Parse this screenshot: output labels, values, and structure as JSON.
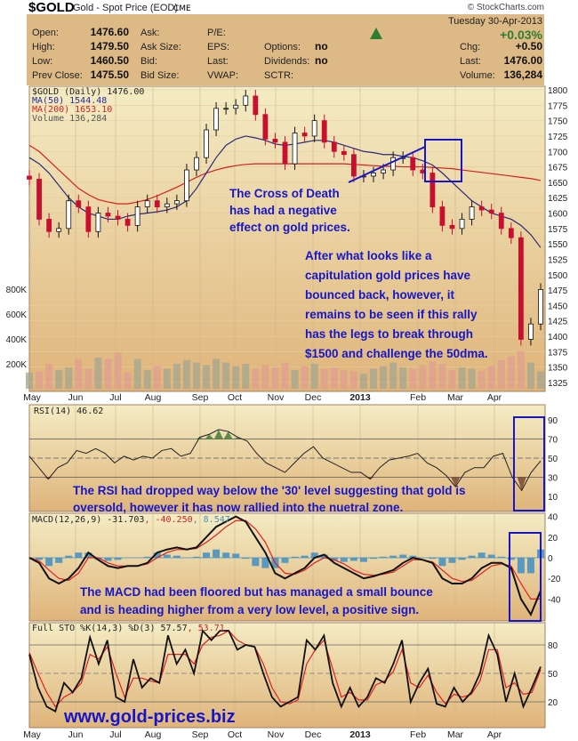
{
  "header": {
    "symbol": "$GOLD",
    "name": "Gold - Spot Price (EOD)",
    "exchange": "CME",
    "copyright": "© StockCharts.com",
    "date": "Tuesday  30-Apr-2013",
    "pct_change": "+0.03%",
    "fields": [
      {
        "label": "Open:",
        "value": "1476.60"
      },
      {
        "label": "High:",
        "value": "1479.50"
      },
      {
        "label": "Low:",
        "value": "1460.50"
      },
      {
        "label": "Prev Close:",
        "value": "1475.50"
      }
    ],
    "col2": [
      "Ask:",
      "Ask Size:",
      "Bid:",
      "Bid Size:"
    ],
    "col3": [
      "P/E:",
      "EPS:",
      "Last:",
      "VWAP:"
    ],
    "col4": [
      {
        "label": "Options:",
        "value": "no"
      },
      {
        "label": "Dividends:",
        "value": "no"
      },
      {
        "label": "SCTR:",
        "value": ""
      }
    ],
    "right": [
      {
        "label": "Chg:",
        "value": "+0.50"
      },
      {
        "label": "Last:",
        "value": "1476.00"
      },
      {
        "label": "Volume:",
        "value": "136,284"
      }
    ],
    "up_color": "#2e7d32"
  },
  "legends": {
    "price": "$GOLD (Daily) 1476.00",
    "ma50": "MA(50) 1544.48",
    "ma200": "MA(200) 1653.10",
    "volume": "Volume 136,284",
    "rsi": "RSI(14) 46.62",
    "macd_main": "MACD(12,26,9) -31.703",
    "macd_signal": ", -40.250",
    "macd_hist": ", 8.547",
    "sto_main": "Full STO %K(14,3) %D(3) 57.57",
    "sto_d": ", 53.71"
  },
  "months": [
    "May",
    "Jun",
    "Jul",
    "Aug",
    "Sep",
    "Oct",
    "Nov",
    "Dec",
    "2013",
    "Feb",
    "Mar",
    "Apr"
  ],
  "annotations": {
    "cross": [
      "The Cross of Death",
      "has had a negative",
      "effect on gold prices."
    ],
    "capitulation": [
      "After what looks like a",
      "capitulation gold prices have",
      "bounced back, however, it",
      "remains to be seen if this rally",
      "has the legs to break through",
      "$1500 and challenge the 50dma."
    ],
    "rsi": [
      "The RSI had dropped way below the '30' level suggesting that gold is",
      "oversold, however it has now rallied into the nuetral zone."
    ],
    "macd": [
      "The MACD had been floored but has managed a small bounce",
      "and is heading higher from a very low level, a positive sign."
    ],
    "website": "www.gold-prices.biz",
    "color": "#1616c8"
  },
  "chart_data": [
    {
      "type": "candlestick",
      "interval": "weekly (approx.)",
      "period": [
        "May 2012",
        "Apr 2013"
      ],
      "yticks": [
        1800,
        1775,
        1750,
        1725,
        1700,
        1675,
        1650,
        1625,
        1600,
        1575,
        1550,
        1525,
        1500,
        1475,
        1450,
        1425,
        1400,
        1375,
        1350,
        1325
      ],
      "ylim": [
        1320,
        1805
      ],
      "close": [
        1655,
        1590,
        1570,
        1575,
        1620,
        1610,
        1570,
        1600,
        1595,
        1590,
        1580,
        1610,
        1620,
        1610,
        1615,
        1620,
        1670,
        1690,
        1735,
        1770,
        1770,
        1775,
        1790,
        1760,
        1720,
        1715,
        1680,
        1730,
        1725,
        1750,
        1715,
        1700,
        1695,
        1660,
        1660,
        1665,
        1670,
        1690,
        1690,
        1670,
        1665,
        1610,
        1580,
        1575,
        1590,
        1610,
        1605,
        1600,
        1575,
        1560,
        1395,
        1420,
        1476
      ],
      "series": [
        {
          "name": "MA(50)",
          "color": "#2a2a7a",
          "values": [
            1690,
            1680,
            1665,
            1645,
            1625,
            1610,
            1600,
            1595,
            1590,
            1590,
            1595,
            1598,
            1600,
            1602,
            1605,
            1610,
            1620,
            1640,
            1665,
            1690,
            1710,
            1720,
            1725,
            1722,
            1718,
            1712,
            1710,
            1712,
            1715,
            1718,
            1718,
            1715,
            1710,
            1705,
            1700,
            1698,
            1695,
            1695,
            1692,
            1690,
            1685,
            1678,
            1665,
            1650,
            1635,
            1620,
            1610,
            1600,
            1595,
            1590,
            1580,
            1565,
            1544
          ]
        },
        {
          "name": "MA(200)",
          "color": "#d42020",
          "values": [
            1710,
            1700,
            1685,
            1670,
            1655,
            1640,
            1630,
            1622,
            1618,
            1615,
            1615,
            1618,
            1622,
            1628,
            1635,
            1642,
            1650,
            1658,
            1665,
            1670,
            1674,
            1677,
            1679,
            1680,
            1680,
            1680,
            1680,
            1680,
            1680,
            1680,
            1680,
            1680,
            1680,
            1679,
            1678,
            1677,
            1676,
            1676,
            1675,
            1675,
            1675,
            1674,
            1673,
            1672,
            1670,
            1668,
            1666,
            1664,
            1662,
            1660,
            1658,
            1656,
            1653
          ]
        }
      ],
      "volume": {
        "yticks": [
          "200K",
          "400K",
          "600K",
          "800K"
        ],
        "values_k": [
          130,
          140,
          200,
          150,
          170,
          240,
          160,
          250,
          240,
          290,
          130,
          240,
          150,
          180,
          160,
          200,
          230,
          210,
          190,
          240,
          210,
          180,
          200,
          160,
          190,
          170,
          210,
          150,
          180,
          200,
          160,
          170,
          150,
          140,
          120,
          160,
          180,
          210,
          170,
          160,
          190,
          220,
          200,
          150,
          170,
          160,
          140,
          180,
          230,
          260,
          300,
          210,
          140
        ]
      }
    },
    {
      "type": "line",
      "name": "RSI(14)",
      "yticks": [
        90,
        70,
        50,
        30,
        10
      ],
      "ylim": [
        0,
        95
      ],
      "values": [
        52,
        40,
        28,
        40,
        45,
        58,
        55,
        60,
        55,
        45,
        52,
        48,
        52,
        50,
        58,
        60,
        52,
        55,
        72,
        75,
        80,
        78,
        72,
        68,
        55,
        45,
        40,
        35,
        45,
        55,
        62,
        50,
        45,
        40,
        35,
        35,
        28,
        40,
        48,
        50,
        52,
        55,
        45,
        40,
        32,
        20,
        35,
        40,
        40,
        52,
        55,
        30,
        16,
        35,
        47
      ]
    },
    {
      "type": "line",
      "name": "MACD(12,26,9)",
      "yticks": [
        40,
        20,
        0,
        -20,
        -40
      ],
      "ylim": [
        -60,
        43
      ],
      "macd": [
        0,
        -5,
        -20,
        -25,
        -20,
        -10,
        5,
        -2,
        -8,
        -10,
        -8,
        -8,
        -5,
        5,
        8,
        10,
        8,
        10,
        20,
        30,
        35,
        40,
        35,
        20,
        5,
        -15,
        -20,
        -15,
        -10,
        0,
        3,
        -5,
        -10,
        -15,
        -20,
        -18,
        -15,
        -12,
        -5,
        0,
        -2,
        -5,
        -20,
        -25,
        -25,
        -20,
        -10,
        -5,
        -5,
        -10,
        -40,
        -55,
        -32
      ],
      "signal": [
        0,
        -3,
        -12,
        -20,
        -22,
        -15,
        0,
        0,
        -5,
        -8,
        -8,
        -8,
        -6,
        0,
        5,
        8,
        8,
        9,
        15,
        22,
        30,
        36,
        36,
        28,
        15,
        -5,
        -15,
        -16,
        -12,
        -5,
        0,
        -2,
        -6,
        -12,
        -16,
        -17,
        -16,
        -14,
        -8,
        -2,
        -2,
        -4,
        -12,
        -20,
        -23,
        -22,
        -15,
        -8,
        -6,
        -8,
        -25,
        -40,
        -40
      ],
      "histogram": [
        0,
        -2,
        -8,
        -5,
        2,
        5,
        5,
        -2,
        -3,
        -2,
        0,
        0,
        1,
        5,
        3,
        2,
        0,
        1,
        5,
        8,
        5,
        4,
        -1,
        -8,
        -10,
        -10,
        -5,
        1,
        2,
        5,
        3,
        -3,
        -4,
        -3,
        -4,
        -1,
        1,
        2,
        3,
        2,
        0,
        -1,
        -8,
        -5,
        -2,
        2,
        5,
        3,
        1,
        -2,
        -15,
        -15,
        8
      ]
    },
    {
      "type": "line",
      "name": "Full STO %K(14,3) %D(3)",
      "yticks": [
        80,
        50,
        20
      ],
      "ylim": [
        0,
        100
      ],
      "k": [
        70,
        35,
        15,
        10,
        40,
        30,
        45,
        88,
        60,
        85,
        25,
        20,
        65,
        35,
        45,
        40,
        90,
        60,
        75,
        50,
        95,
        85,
        95,
        95,
        75,
        80,
        78,
        50,
        25,
        15,
        20,
        25,
        85,
        75,
        90,
        40,
        15,
        35,
        15,
        25,
        45,
        40,
        60,
        85,
        20,
        40,
        55,
        18,
        15,
        35,
        20,
        30,
        50,
        90,
        70,
        20,
        50,
        15,
        35,
        57
      ],
      "d": [
        72,
        50,
        30,
        15,
        25,
        30,
        40,
        70,
        65,
        78,
        50,
        25,
        45,
        45,
        42,
        40,
        70,
        70,
        70,
        60,
        80,
        88,
        90,
        95,
        85,
        80,
        78,
        60,
        35,
        20,
        18,
        22,
        60,
        75,
        85,
        55,
        25,
        30,
        22,
        22,
        38,
        42,
        52,
        75,
        40,
        35,
        48,
        30,
        18,
        28,
        25,
        28,
        42,
        75,
        75,
        35,
        40,
        28,
        30,
        54
      ]
    }
  ]
}
